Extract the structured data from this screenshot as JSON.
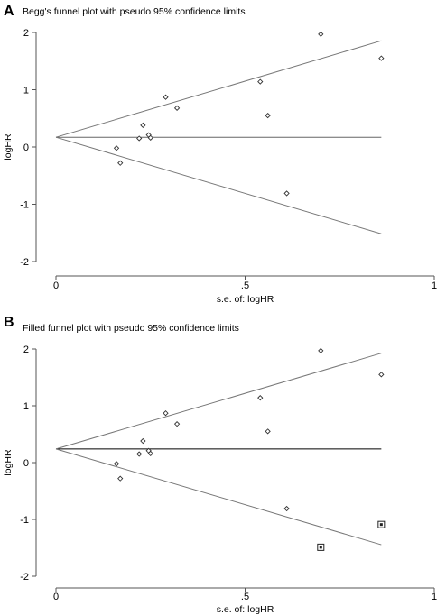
{
  "chart_data": [
    {
      "panel_label": "A",
      "type": "scatter",
      "title": "Begg's funnel plot with pseudo 95% confidence limits",
      "xlabel": "s.e. of: logHR",
      "ylabel": "logHR",
      "xlim": [
        0,
        1
      ],
      "ylim": [
        -2,
        2
      ],
      "x_ticks": [
        0,
        0.5,
        1
      ],
      "x_tick_labels": [
        "0",
        ".5",
        "1"
      ],
      "y_ticks": [
        -2,
        -1,
        0,
        1,
        2
      ],
      "y_tick_labels": [
        "-2",
        "-1",
        "0",
        "1",
        "2"
      ],
      "grid": false,
      "pooled_estimate": 0.17,
      "limit_line_end_x": 0.86,
      "series": [
        {
          "marker": "diamond",
          "points": [
            {
              "x": 0.16,
              "y": -0.02
            },
            {
              "x": 0.17,
              "y": -0.28
            },
            {
              "x": 0.22,
              "y": 0.15
            },
            {
              "x": 0.23,
              "y": 0.38
            },
            {
              "x": 0.245,
              "y": 0.21
            },
            {
              "x": 0.25,
              "y": 0.16
            },
            {
              "x": 0.29,
              "y": 0.87
            },
            {
              "x": 0.32,
              "y": 0.68
            },
            {
              "x": 0.54,
              "y": 1.14
            },
            {
              "x": 0.56,
              "y": 0.55
            },
            {
              "x": 0.61,
              "y": -0.81
            },
            {
              "x": 0.7,
              "y": 1.97
            },
            {
              "x": 0.86,
              "y": 1.55
            }
          ]
        }
      ]
    },
    {
      "panel_label": "B",
      "type": "scatter",
      "title": "Filled funnel plot with pseudo 95% confidence limits",
      "xlabel": "s.e. of: logHR",
      "ylabel": "logHR",
      "xlim": [
        0,
        1
      ],
      "ylim": [
        -2,
        2
      ],
      "x_ticks": [
        0,
        0.5,
        1
      ],
      "x_tick_labels": [
        "0",
        ".5",
        "1"
      ],
      "y_ticks": [
        -2,
        -1,
        0,
        1,
        2
      ],
      "y_tick_labels": [
        "-2",
        "-1",
        "0",
        "1",
        "2"
      ],
      "grid": false,
      "pooled_estimate": 0.24,
      "limit_line_end_x": 0.86,
      "series": [
        {
          "marker": "diamond",
          "points": [
            {
              "x": 0.16,
              "y": -0.02
            },
            {
              "x": 0.17,
              "y": -0.28
            },
            {
              "x": 0.22,
              "y": 0.15
            },
            {
              "x": 0.23,
              "y": 0.38
            },
            {
              "x": 0.245,
              "y": 0.21
            },
            {
              "x": 0.25,
              "y": 0.16
            },
            {
              "x": 0.29,
              "y": 0.87
            },
            {
              "x": 0.32,
              "y": 0.68
            },
            {
              "x": 0.54,
              "y": 1.14
            },
            {
              "x": 0.56,
              "y": 0.55
            },
            {
              "x": 0.61,
              "y": -0.81
            },
            {
              "x": 0.7,
              "y": 1.97
            },
            {
              "x": 0.86,
              "y": 1.55
            }
          ]
        },
        {
          "marker": "boxed-square",
          "points": [
            {
              "x": 0.7,
              "y": -1.49
            },
            {
              "x": 0.86,
              "y": -1.09
            }
          ]
        }
      ]
    }
  ]
}
